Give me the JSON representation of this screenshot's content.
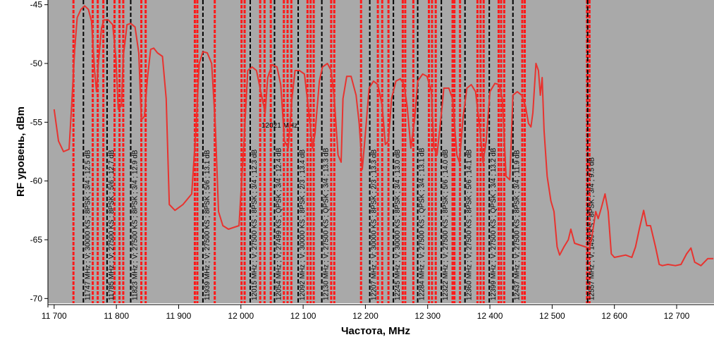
{
  "chart_data": {
    "type": "line",
    "xlabel": "Частота, MHz",
    "ylabel": "RF уровень, dBm",
    "annotation": "12021 MHz",
    "xlim": [
      11690,
      12760
    ],
    "ylim": [
      -70.4,
      -44.6
    ],
    "xticks": [
      {
        "value": 11700,
        "label": "11 700"
      },
      {
        "value": 11800,
        "label": "11 800"
      },
      {
        "value": 11900,
        "label": "11 900"
      },
      {
        "value": 12000,
        "label": "12 000"
      },
      {
        "value": 12100,
        "label": "12 100"
      },
      {
        "value": 12200,
        "label": "12 200"
      },
      {
        "value": 12300,
        "label": "12 300"
      },
      {
        "value": 12400,
        "label": "12 400"
      },
      {
        "value": 12500,
        "label": "12 500"
      },
      {
        "value": 12600,
        "label": "12 600"
      },
      {
        "value": 12700,
        "label": "12 700"
      }
    ],
    "yticks": [
      -45,
      -50,
      -55,
      -60,
      -65,
      -70
    ],
    "background": "#a9a9a9",
    "band_edge_color": "#ff1a1a",
    "transponder_color": "#000000",
    "band_edges": [
      11731,
      11762,
      11770,
      11779,
      11797,
      11805,
      11811,
      11840,
      11847,
      11926,
      11930,
      11958,
      12001,
      12006,
      12031,
      12038,
      12048,
      12069,
      12075,
      12081,
      12107,
      12112,
      12117,
      12145,
      12150,
      12193,
      12220,
      12227,
      12237,
      12260,
      12264,
      12277,
      12302,
      12307,
      12313,
      12340,
      12343,
      12352,
      12380,
      12385,
      12390,
      12414,
      12418,
      12423,
      12452,
      12456,
      12556,
      12560
    ],
    "transponders": [
      {
        "x": 11747,
        "label": "11747 MHz ; V; 30000 KS ; 8PSK ; 3/4 ; 12.5 dB"
      },
      {
        "x": 11785,
        "label": "11785 MHz ; V; 27500 KS ; 8PSK ; 5/6 ; 12.7 dB"
      },
      {
        "x": 11823,
        "label": "11823 MHz ; V; 27500 KS ; 8PSK ; 3/4 ; 12.9 dB"
      },
      {
        "x": 11939,
        "label": "11939 MHz ; V; 27500 KS ; 8PSK ; 5/6 ; 13.1 dB"
      },
      {
        "x": 12015,
        "label": "12015 MHz ; V; 27500 KS ; 8PSK ; 3/4 ; 12.3 dB"
      },
      {
        "x": 12054,
        "label": "12054 MHz ; V; 27499 KS ; QPSK ; 3/4 ; 12.4 dB"
      },
      {
        "x": 12092,
        "label": "12092 MHz ; V; 30000 KS ; 8PSK ; 2/3 ; 13.4 dB"
      },
      {
        "x": 12130,
        "label": "12130 MHz ; V; 27500 KS ; QPSK ; 3/4 ; 13.3 dB"
      },
      {
        "x": 12207,
        "label": "12207 MHz ; V; 30000 KS ; 8PSK ; 2/3 ; 13.3 dB"
      },
      {
        "x": 12245,
        "label": "12245 MHz ; V; 30000 KS ; 8PSK ; 3/4 ; 13.0 dB"
      },
      {
        "x": 12284,
        "label": "12284 MHz ; V; 27500 KS ; QPSK ; 3/4 ; 13.1 dB"
      },
      {
        "x": 12322,
        "label": "12322 MHz ; V; 27500 KS ; 8PSK ; 5/6 ; 14.0 dB"
      },
      {
        "x": 12360,
        "label": "12360 MHz ; V; 27500 KS ; 8PSK ; 5/6 ; 14.1 dB"
      },
      {
        "x": 12399,
        "label": "12399 MHz ; V; 27500 KS ; QPSK ; 3/4 ; 13.2 dB"
      },
      {
        "x": 12437,
        "label": "12437 MHz ; V; 27500 KS ; 8PSK ; 3/4 ; 11.9 dB"
      },
      {
        "x": 12557,
        "label": "12557 MHz ; V; 1499 KS ; 8PSK ; 3/4 ; 9.5 dB"
      }
    ],
    "series": [
      {
        "color": "#e8332f",
        "x": [
          11700,
          11707,
          11715,
          11724,
          11728,
          11733,
          11737,
          11743,
          11749,
          11755,
          11760,
          11765,
          11768,
          11771,
          11776,
          11780,
          11787,
          11794,
          11799,
          11803,
          11808,
          11811,
          11817,
          11823,
          11830,
          11836,
          11840,
          11845,
          11850,
          11855,
          11860,
          11866,
          11874,
          11880,
          11885,
          11894,
          11907,
          11921,
          11928,
          11933,
          11939,
          11946,
          11953,
          11959,
          11964,
          11971,
          11980,
          11997,
          12005,
          12011,
          12018,
          12025,
          12032,
          12039,
          12043,
          12050,
          12058,
          12064,
          12070,
          12076,
          12082,
          12087,
          12094,
          12102,
          12108,
          12115,
          12119,
          12126,
          12131,
          12139,
          12145,
          12150,
          12156,
          12161,
          12164,
          12170,
          12177,
          12185,
          12190,
          12195,
          12199,
          12206,
          12213,
          12220,
          12227,
          12232,
          12237,
          12242,
          12249,
          12256,
          12262,
          12267,
          12273,
          12279,
          12284,
          12292,
          12299,
          12306,
          12310,
          12315,
          12321,
          12326,
          12334,
          12340,
          12347,
          12351,
          12357,
          12363,
          12370,
          12377,
          12383,
          12389,
          12394,
          12400,
          12408,
          12415,
          12420,
          12426,
          12432,
          12437,
          12444,
          12451,
          12457,
          12462,
          12466,
          12469,
          12474,
          12478,
          12481,
          12484,
          12487,
          12492,
          12498,
          12503,
          12508,
          12512,
          12519,
          12526,
          12530,
          12536,
          12553,
          12560,
          12564,
          12570,
          12574,
          12579,
          12585,
          12590,
          12595,
          12600,
          12618,
          12628,
          12634,
          12640,
          12647,
          12652,
          12658,
          12666,
          12672,
          12677,
          12686,
          12698,
          12707,
          12716,
          12723,
          12729,
          12739,
          12750,
          12759
        ],
        "values": [
          -53.9,
          -56.6,
          -57.5,
          -57.3,
          -53.6,
          -48.8,
          -46.1,
          -45.4,
          -45.1,
          -45.4,
          -46.4,
          -50.6,
          -52.4,
          -50.0,
          -47.0,
          -46.3,
          -46.3,
          -46.7,
          -49.4,
          -53.9,
          -53.6,
          -49.4,
          -46.7,
          -46.6,
          -46.9,
          -49.1,
          -54.8,
          -54.5,
          -51.2,
          -48.8,
          -48.7,
          -49.1,
          -49.4,
          -53.0,
          -62.0,
          -62.5,
          -62.0,
          -61.1,
          -55.4,
          -50.0,
          -49.0,
          -49.1,
          -50.0,
          -55.4,
          -62.6,
          -63.8,
          -64.1,
          -63.8,
          -56.6,
          -50.6,
          -50.3,
          -50.6,
          -52.4,
          -54.2,
          -51.2,
          -50.1,
          -50.3,
          -51.8,
          -56.6,
          -57.2,
          -53.0,
          -50.6,
          -50.6,
          -50.9,
          -53.6,
          -57.2,
          -56.0,
          -51.5,
          -50.3,
          -50.0,
          -50.6,
          -53.0,
          -57.8,
          -58.4,
          -53.0,
          -51.1,
          -51.1,
          -52.7,
          -55.1,
          -59.0,
          -56.6,
          -52.1,
          -51.5,
          -51.8,
          -53.6,
          -56.9,
          -56.6,
          -53.0,
          -51.5,
          -51.3,
          -51.8,
          -53.6,
          -57.2,
          -54.8,
          -51.5,
          -50.9,
          -51.1,
          -52.4,
          -57.2,
          -57.8,
          -54.8,
          -52.1,
          -52.1,
          -53.0,
          -57.8,
          -58.4,
          -54.5,
          -52.1,
          -51.8,
          -52.4,
          -55.1,
          -58.4,
          -56.6,
          -52.4,
          -51.7,
          -51.8,
          -53.0,
          -59.6,
          -59.9,
          -52.7,
          -52.4,
          -52.7,
          -53.6,
          -55.1,
          -55.4,
          -54.2,
          -50.0,
          -50.6,
          -52.7,
          -51.2,
          -55.7,
          -59.6,
          -61.7,
          -62.6,
          -65.6,
          -66.3,
          -65.6,
          -65.0,
          -64.1,
          -65.3,
          -65.6,
          -65.7,
          -64.7,
          -62.6,
          -63.2,
          -62.3,
          -61.1,
          -62.6,
          -66.2,
          -66.5,
          -66.3,
          -66.5,
          -65.6,
          -64.1,
          -62.5,
          -63.8,
          -63.8,
          -65.6,
          -67.1,
          -67.2,
          -67.1,
          -67.2,
          -67.1,
          -66.2,
          -65.7,
          -66.9,
          -67.2,
          -66.6,
          -66.6
        ]
      }
    ]
  }
}
